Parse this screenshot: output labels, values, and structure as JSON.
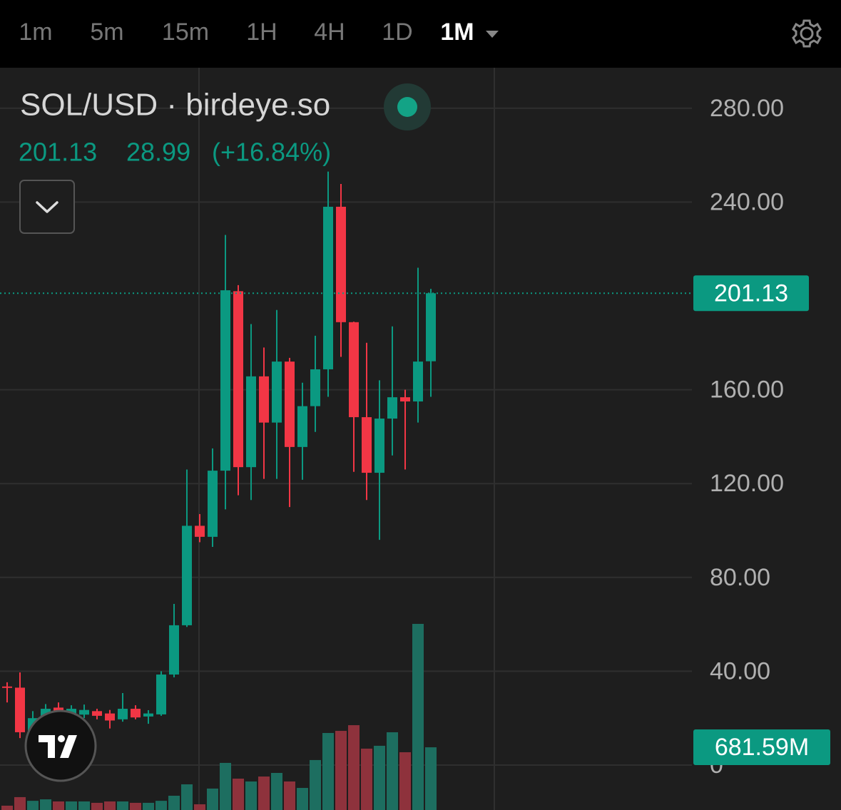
{
  "toolbar": {
    "intervals": [
      "1m",
      "5m",
      "15m",
      "1H",
      "4H",
      "1D",
      "1M"
    ],
    "active": 6
  },
  "legend": {
    "symbol": "SOL/USD · birdeye.so"
  },
  "chart_data": {
    "type": "candlestick",
    "up_color": "#0b9981",
    "down_color": "#f23645",
    "candles": {
      "open": [
        33.5,
        33,
        14,
        20,
        24.5,
        22,
        21.5,
        23,
        22,
        19.5,
        24,
        20.7,
        21.6,
        38.6,
        59.6,
        102,
        97.3,
        125.5,
        202,
        127,
        165.7,
        146,
        172,
        135.6,
        153,
        168.7,
        238,
        188.8,
        148.3,
        124.6,
        147.7,
        156.8,
        155,
        172.14
      ],
      "high": [
        35.3,
        39.5,
        23,
        26,
        26.7,
        25.5,
        25.8,
        24,
        23.5,
        30.7,
        25.5,
        23.4,
        40,
        68.7,
        126,
        107,
        135,
        226,
        204.6,
        188,
        178,
        194,
        173.6,
        163,
        183,
        253,
        247.7,
        189,
        180,
        164,
        187,
        160,
        212,
        203
      ],
      "low": [
        26.7,
        11.5,
        12,
        18,
        20,
        20,
        20,
        19.5,
        15.6,
        18.5,
        19.5,
        17.6,
        21,
        37.4,
        58.9,
        95,
        93,
        109,
        115,
        113,
        122,
        122,
        110,
        121.6,
        142,
        157,
        174,
        125,
        113,
        96,
        132,
        126,
        146,
        157
      ],
      "close": [
        33.4,
        14,
        20,
        24,
        22,
        24,
        23.5,
        21,
        19,
        24,
        20.3,
        22,
        38.6,
        59.6,
        102,
        97.3,
        125.5,
        202.4,
        127,
        165.7,
        146,
        172,
        135.6,
        153,
        168.7,
        238,
        188.8,
        148.3,
        124.6,
        147.7,
        156.8,
        155,
        172,
        201.13
      ]
    },
    "change": 28.99,
    "change_percent_label": "(+16.84%)",
    "volume": {
      "axis": "y2",
      "values": [
        47,
        140,
        100,
        116,
        93,
        93,
        93,
        78,
        93,
        93,
        78,
        78,
        100,
        155,
        279,
        62,
        233,
        512,
        341,
        310,
        364,
        403,
        310,
        240,
        543,
        837,
        860,
        922,
        667,
        698,
        845,
        628,
        2023,
        681.59
      ],
      "last_label": "681.59M",
      "up_color": "#1d6e60",
      "down_color": "#8e323c"
    },
    "ylim": [
      -19.15,
      297.26
    ],
    "yticks": [
      0,
      {
        "value": 40,
        "label": "40.00"
      },
      {
        "value": 80,
        "label": "80.00"
      },
      {
        "value": 120,
        "label": "120.00"
      },
      {
        "value": 160,
        "label": "160.00"
      },
      {
        "value": 240,
        "label": "240.00"
      },
      {
        "value": 280,
        "label": "280.00"
      }
    ],
    "y2lim": [
      0,
      8068
    ],
    "grid": true
  }
}
